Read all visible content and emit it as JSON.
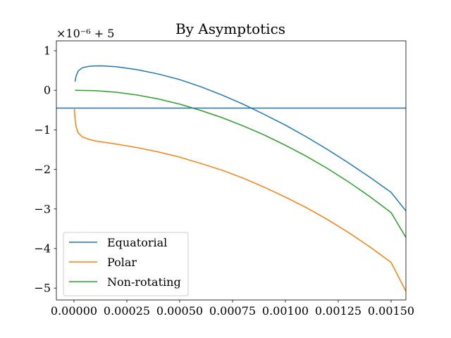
{
  "chart_data": {
    "type": "line",
    "title": "By Asymptotics",
    "xlabel": "",
    "ylabel": "",
    "y_offset_label": "×10⁻⁶ + 5",
    "xlim": [
      -8.33e-05,
      0.00157
    ],
    "ylim": [
      -5.3,
      1.25
    ],
    "x_ticks": [
      0.0,
      0.00025,
      0.0005,
      0.00075,
      0.001,
      0.00125,
      0.0015
    ],
    "x_tick_labels": [
      "0.00000",
      "0.00025",
      "0.00050",
      "0.00075",
      "0.00100",
      "0.00125",
      "0.00150"
    ],
    "y_ticks": [
      1,
      0,
      -1,
      -2,
      -3,
      -4,
      -5
    ],
    "y_tick_labels": [
      "1",
      "0",
      "−1",
      "−2",
      "−3",
      "−4",
      "−5"
    ],
    "grid": false,
    "legend_position": "lower-left",
    "series": [
      {
        "name": "Equatorial",
        "color": "#1f77b4",
        "x": [
          5e-06,
          1e-05,
          2e-05,
          4e-05,
          7e-05,
          0.0001,
          0.00013,
          0.0002,
          0.0003,
          0.0004,
          0.0005,
          0.0006,
          0.0007,
          0.0008,
          0.0009,
          0.001,
          0.0011,
          0.0012,
          0.0013,
          0.0014,
          0.0015,
          0.00157
        ],
        "y": [
          0.22,
          0.36,
          0.49,
          0.57,
          0.605,
          0.615,
          0.617,
          0.595,
          0.52,
          0.41,
          0.27,
          0.09,
          -0.12,
          -0.35,
          -0.61,
          -0.88,
          -1.18,
          -1.5,
          -1.84,
          -2.2,
          -2.58,
          -3.05
        ]
      },
      {
        "name": "Polar",
        "color": "#ff7f0e",
        "x": [
          2e-06,
          5e-06,
          1e-05,
          2e-05,
          4e-05,
          7e-05,
          0.0001,
          0.0002,
          0.0003,
          0.0004,
          0.0005,
          0.0006,
          0.0007,
          0.0008,
          0.0009,
          0.001,
          0.0011,
          0.0012,
          0.0013,
          0.0014,
          0.0015,
          0.00157
        ],
        "y": [
          -0.47,
          -0.72,
          -0.92,
          -1.08,
          -1.18,
          -1.24,
          -1.28,
          -1.36,
          -1.45,
          -1.56,
          -1.69,
          -1.85,
          -2.02,
          -2.22,
          -2.45,
          -2.7,
          -2.97,
          -3.27,
          -3.6,
          -3.96,
          -4.35,
          -5.08
        ]
      },
      {
        "name": "Non-rotating",
        "color": "#2ca02c",
        "x": [
          5e-06,
          0.0001,
          0.0002,
          0.0003,
          0.0004,
          0.0005,
          0.0006,
          0.0007,
          0.0008,
          0.0009,
          0.001,
          0.0011,
          0.0012,
          0.0013,
          0.0014,
          0.0015,
          0.00157
        ],
        "y": [
          0.0,
          -0.01,
          -0.05,
          -0.12,
          -0.22,
          -0.35,
          -0.51,
          -0.69,
          -0.9,
          -1.13,
          -1.39,
          -1.67,
          -1.98,
          -2.32,
          -2.69,
          -3.09,
          -3.72
        ]
      },
      {
        "name": "",
        "color": "#1f77b4",
        "x": [
          -8.33e-05,
          0.00157
        ],
        "y": [
          -0.45,
          -0.45
        ]
      }
    ]
  }
}
